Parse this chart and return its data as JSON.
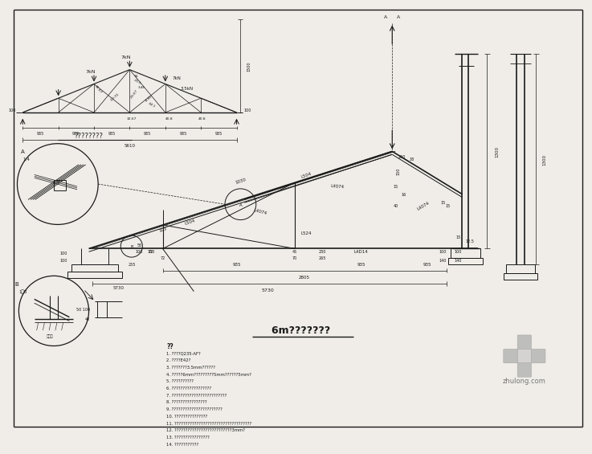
{
  "bg_color": "#f0ede8",
  "line_color": "#1a1a1a",
  "border_color": "#000000",
  "title": "6m??????? ",
  "notes_header": "??",
  "notes": [
    "1. ????Q235-AF?",
    "2. ????E42?",
    "3. ???????3.5mm??????",
    "4. ?????6mm?????????5mm??????5mm?",
    "5. ??????????",
    "6. ??????????????????",
    "7. ?????????????????????????",
    "8. ????????????????",
    "9. ???????????????????????",
    "10. ???????????????",
    "11. ???????????????????????????????????",
    "12. ??????????????????????????3mm?",
    "13. ????????????????",
    "14. ???????????"
  ],
  "watermark": "zhulong.com"
}
